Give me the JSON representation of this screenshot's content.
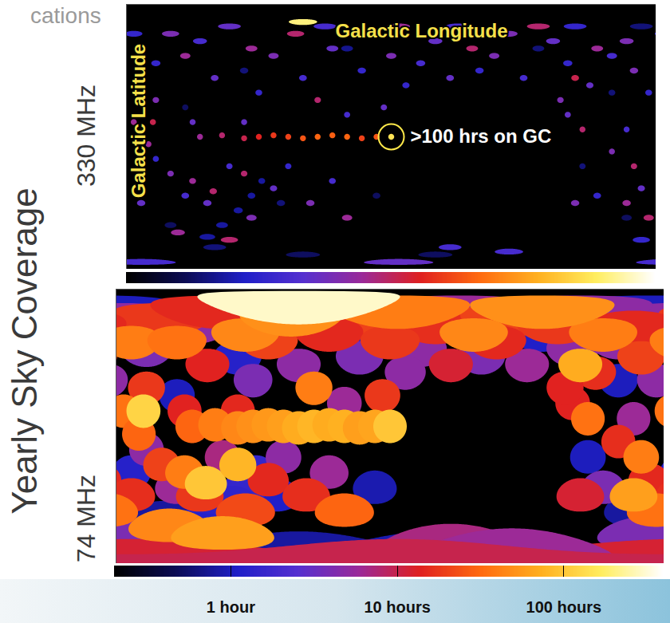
{
  "chart_data": {
    "type": "map",
    "title": "Yearly Sky Coverage",
    "slide_text": "cations",
    "x_label": "Galactic Longitude",
    "y_label": "Galactic Latitude",
    "xlim": [
      180,
      -180
    ],
    "ylim": [
      -90,
      90
    ],
    "tick_labels": false,
    "log": true,
    "annotation": {
      "text": ">100 hrs on GC",
      "l": 0,
      "b": 0
    },
    "colorbar": {
      "range": [
        0.2,
        400
      ],
      "ticks": [
        {
          "value": 1,
          "label": "1 hour"
        },
        {
          "value": 10,
          "label": "10 hours"
        },
        {
          "value": 100,
          "label": "100 hours"
        }
      ],
      "colors": [
        "#000000",
        "#0c0c55",
        "#1f1fc8",
        "#5530d0",
        "#9a2a9a",
        "#e02020",
        "#ff6a10",
        "#ffb020",
        "#ffee60",
        "#ffffff"
      ]
    },
    "pointings": {
      "l": [
        150,
        120,
        -160,
        -130,
        -30,
        60,
        170,
        -150,
        100,
        30,
        -100,
        140,
        -170,
        75,
        10,
        88,
        95,
        104,
        115,
        125,
        160,
        130,
        90,
        60,
        20,
        -20,
        -60,
        -90,
        -120,
        -150,
        -175,
        -160,
        -140,
        -170,
        170,
        140,
        110,
        160,
        70,
        40,
        -40,
        -80,
        30,
        -10,
        -45,
        175,
        45,
        -125,
        150,
        110,
        15,
        -30,
        -80,
        -110,
        -160,
        120,
        80,
        40,
        0,
        -40,
        -70,
        -135,
        -165,
        -120,
        -150,
        -170,
        -125,
        170,
        150,
        125,
        95,
        80,
        55,
        135,
        160,
        100,
        -115,
        5,
        -5,
        170,
        95,
        65,
        -5,
        -55,
        -140,
        -100,
        140,
        50,
        175,
        -165,
        145,
        110,
        135,
        -130,
        165,
        -175,
        30,
        130,
        115,
        100,
        90,
        80,
        70,
        60,
        50,
        40,
        30,
        20,
        10,
        162,
        121,
        100,
        -160,
        -125,
        0,
        60
      ],
      "b": [
        -60,
        -75,
        -55,
        -20,
        -80,
        -80,
        -30,
        30,
        45,
        60,
        60,
        20,
        75,
        -45,
        -40,
        -30,
        -40,
        -50,
        -60,
        -68,
        50,
        65,
        30,
        40,
        45,
        50,
        45,
        40,
        50,
        55,
        30,
        5,
        -40,
        -70,
        -85,
        -40,
        -20,
        -15,
        -20,
        -30,
        -75,
        -78,
        15,
        35,
        75,
        70,
        75,
        75,
        70,
        75,
        70,
        65,
        70,
        65,
        65,
        40,
        55,
        60,
        55,
        40,
        55,
        35,
        45,
        15,
        -10,
        -35,
        -45,
        -45,
        -25,
        -45,
        -55,
        -35,
        -45,
        10,
        25,
        10,
        25,
        20,
        -85,
        55,
        60,
        70,
        75,
        60,
        60,
        75,
        55,
        25,
        10,
        -20,
        -65,
        -70,
        -30,
        5,
        -5,
        -55,
        -55,
        0,
        1,
        -1,
        0,
        1,
        0,
        -1,
        0,
        1,
        0,
        -1,
        0,
        10,
        -37,
        -25,
        -45,
        40,
        0,
        78
      ]
    },
    "panels": [
      {
        "name": "330 MHz",
        "beam_diameter": 4,
        "hours": [
          0.5,
          0.6,
          0.5,
          0.6,
          0.5,
          0.5,
          0.7,
          0.6,
          0.6,
          0.7,
          0.6,
          0.5,
          0.6,
          0.6,
          0.5,
          0.8,
          0.8,
          0.8,
          0.8,
          0.8,
          1.5,
          2,
          1.5,
          2,
          1.5,
          2,
          1.5,
          2,
          1.5,
          2,
          1.5,
          2,
          1.5,
          1.5,
          2,
          2,
          2,
          1.5,
          1.5,
          2,
          2,
          2,
          2,
          1.5,
          2,
          1.5,
          2,
          1.5,
          4,
          3,
          4,
          3,
          4,
          3,
          4,
          3,
          4,
          3,
          4,
          3,
          4,
          3,
          4,
          3,
          4,
          3,
          4,
          3,
          4,
          3,
          4,
          3,
          4,
          3,
          4,
          3,
          4,
          3,
          3,
          8,
          6,
          8,
          6,
          8,
          6,
          8,
          6,
          8,
          6,
          8,
          6,
          8,
          6,
          8,
          6,
          8,
          6,
          6,
          8,
          10,
          14,
          18,
          20,
          25,
          30,
          28,
          30,
          20,
          25,
          10,
          8,
          8,
          6,
          10,
          150,
          200
        ]
      },
      {
        "name": "74 MHz",
        "beam_diameter": 22,
        "hours": [
          0.8,
          0.9,
          0.8,
          1.0,
          0.9,
          0.8,
          1.2,
          1.0,
          1.2,
          1.3,
          1.1,
          1.0,
          1.0,
          1.1,
          0.9,
          1.5,
          1.5,
          1.4,
          1.3,
          1.2,
          4,
          5,
          4,
          5,
          4,
          5,
          4,
          6,
          5,
          5,
          5,
          6,
          4,
          4,
          12,
          6,
          7,
          5,
          5,
          6,
          7,
          6,
          6,
          5,
          6,
          5,
          6,
          5,
          18,
          15,
          20,
          16,
          20,
          18,
          15,
          14,
          20,
          15,
          18,
          12,
          15,
          16,
          20,
          14,
          16,
          15,
          12,
          16,
          20,
          18,
          22,
          15,
          16,
          14,
          18,
          15,
          14,
          18,
          10,
          40,
          45,
          50,
          40,
          45,
          40,
          50,
          35,
          40,
          35,
          40,
          45,
          60,
          40,
          35,
          30,
          35,
          30,
          30,
          40,
          45,
          50,
          55,
          60,
          70,
          80,
          70,
          75,
          60,
          65,
          120,
          100,
          80,
          60,
          70,
          100,
          300
        ]
      }
    ]
  }
}
